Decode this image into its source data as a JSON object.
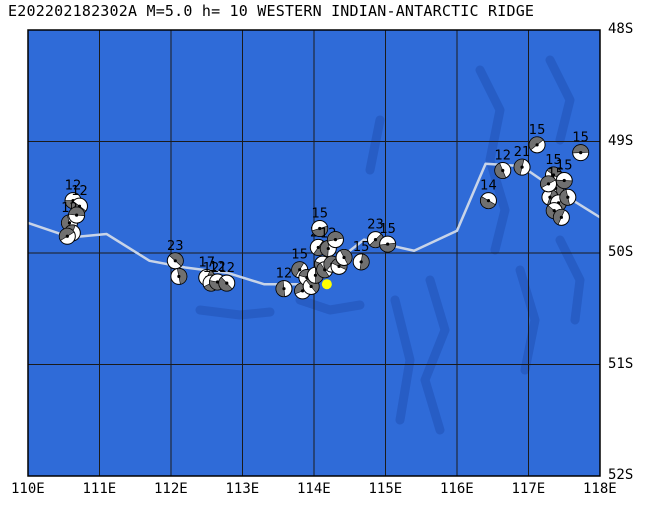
{
  "title": "E202202182302A M=5.0 h= 10 WESTERN INDIAN-ANTARCTIC RIDGE",
  "colors": {
    "ocean": "#2f6bd8",
    "ocean_dark": "#2457bd",
    "grid": "#1b1b1b",
    "ridge": "#c8d4e8",
    "epicenter": "#ffff00",
    "beach_dark": "#707070"
  },
  "map": {
    "lon_range": [
      110,
      118
    ],
    "lat_range": [
      48,
      52
    ],
    "lon_labels": [
      "110E",
      "111E",
      "112E",
      "113E",
      "114E",
      "115E",
      "116E",
      "117E",
      "118E"
    ],
    "lat_labels": [
      "48S",
      "49S",
      "50S",
      "51S",
      "52S"
    ]
  },
  "epicenter": {
    "lon": 114.18,
    "lat": 50.28
  },
  "ridge_line": [
    [
      110.0,
      49.73
    ],
    [
      110.6,
      49.86
    ],
    [
      111.1,
      49.83
    ],
    [
      111.7,
      50.07
    ],
    [
      112.2,
      50.13
    ],
    [
      112.8,
      50.18
    ],
    [
      113.3,
      50.28
    ],
    [
      113.8,
      50.28
    ],
    [
      114.3,
      50.08
    ],
    [
      114.7,
      49.88
    ],
    [
      115.4,
      49.98
    ],
    [
      116.0,
      49.8
    ],
    [
      116.4,
      49.2
    ],
    [
      116.9,
      49.22
    ],
    [
      117.4,
      49.44
    ],
    [
      118.0,
      49.68
    ]
  ],
  "mechanisms": [
    {
      "lon": 110.63,
      "lat": 49.53,
      "depth": "12"
    },
    {
      "lon": 110.72,
      "lat": 49.58,
      "depth": "12"
    },
    {
      "lon": 110.58,
      "lat": 49.73,
      "depth": "12"
    },
    {
      "lon": 110.62,
      "lat": 49.82,
      "depth": ""
    },
    {
      "lon": 110.55,
      "lat": 49.85,
      "depth": ""
    },
    {
      "lon": 110.68,
      "lat": 49.66,
      "depth": ""
    },
    {
      "lon": 112.06,
      "lat": 50.07,
      "depth": "23"
    },
    {
      "lon": 112.11,
      "lat": 50.21,
      "depth": ""
    },
    {
      "lon": 112.5,
      "lat": 50.22,
      "depth": "17"
    },
    {
      "lon": 112.56,
      "lat": 50.27,
      "depth": "12"
    },
    {
      "lon": 112.65,
      "lat": 50.26,
      "depth": "12"
    },
    {
      "lon": 112.78,
      "lat": 50.27,
      "depth": "12"
    },
    {
      "lon": 113.58,
      "lat": 50.32,
      "depth": "12"
    },
    {
      "lon": 113.8,
      "lat": 50.15,
      "depth": "15"
    },
    {
      "lon": 113.84,
      "lat": 50.34,
      "depth": ""
    },
    {
      "lon": 113.9,
      "lat": 50.22,
      "depth": ""
    },
    {
      "lon": 113.96,
      "lat": 50.3,
      "depth": ""
    },
    {
      "lon": 114.02,
      "lat": 50.2,
      "depth": ""
    },
    {
      "lon": 114.06,
      "lat": 49.95,
      "depth": "20"
    },
    {
      "lon": 114.08,
      "lat": 49.78,
      "depth": "15"
    },
    {
      "lon": 114.12,
      "lat": 50.1,
      "depth": ""
    },
    {
      "lon": 114.15,
      "lat": 50.15,
      "depth": ""
    },
    {
      "lon": 114.2,
      "lat": 49.96,
      "depth": "12"
    },
    {
      "lon": 114.25,
      "lat": 50.1,
      "depth": ""
    },
    {
      "lon": 114.3,
      "lat": 49.88,
      "depth": ""
    },
    {
      "lon": 114.35,
      "lat": 50.12,
      "depth": ""
    },
    {
      "lon": 114.42,
      "lat": 50.04,
      "depth": ""
    },
    {
      "lon": 114.66,
      "lat": 50.08,
      "depth": "15"
    },
    {
      "lon": 114.86,
      "lat": 49.88,
      "depth": "23"
    },
    {
      "lon": 115.03,
      "lat": 49.92,
      "depth": "15"
    },
    {
      "lon": 116.44,
      "lat": 49.53,
      "depth": "14"
    },
    {
      "lon": 116.64,
      "lat": 49.26,
      "depth": "12"
    },
    {
      "lon": 116.91,
      "lat": 49.23,
      "depth": "21"
    },
    {
      "lon": 117.12,
      "lat": 49.03,
      "depth": "15"
    },
    {
      "lon": 117.73,
      "lat": 49.1,
      "depth": "15"
    },
    {
      "lon": 117.35,
      "lat": 49.3,
      "depth": "15"
    },
    {
      "lon": 117.38,
      "lat": 49.42,
      "depth": "15"
    },
    {
      "lon": 117.3,
      "lat": 49.5,
      "depth": ""
    },
    {
      "lon": 117.42,
      "lat": 49.55,
      "depth": ""
    },
    {
      "lon": 117.5,
      "lat": 49.35,
      "depth": "15"
    },
    {
      "lon": 117.36,
      "lat": 49.62,
      "depth": ""
    },
    {
      "lon": 117.55,
      "lat": 49.5,
      "depth": ""
    },
    {
      "lon": 117.46,
      "lat": 49.68,
      "depth": ""
    },
    {
      "lon": 117.28,
      "lat": 49.38,
      "depth": ""
    }
  ]
}
